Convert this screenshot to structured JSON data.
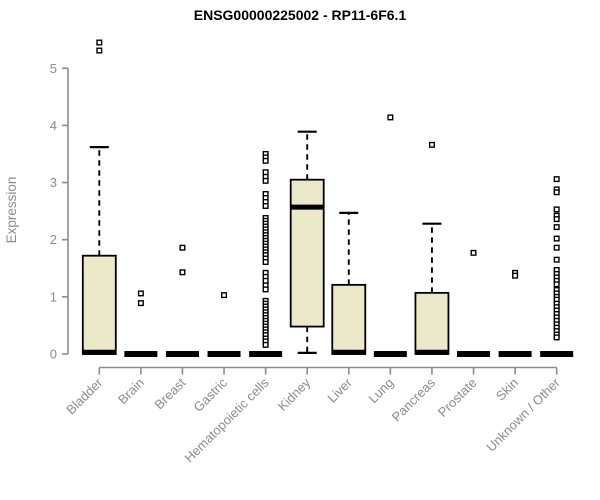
{
  "chart_data": {
    "type": "boxplot",
    "title": "ENSG00000225002 - RP11-6F6.1",
    "ylabel": "Expression",
    "xlabel": "",
    "ylim": [
      0,
      5
    ],
    "yticks": [
      0,
      1,
      2,
      3,
      4,
      5
    ],
    "grid": false,
    "legend": false,
    "categories": [
      "Bladder",
      "Brain",
      "Breast",
      "Gastric",
      "Hematopoietic cells",
      "Kidney",
      "Liver",
      "Lung",
      "Pancreas",
      "Prostate",
      "Skin",
      "Unknown / Other"
    ],
    "boxes": [
      {
        "category": "Bladder",
        "q1": 0,
        "median": 0.03,
        "q3": 1.72,
        "whisker_low": 0,
        "whisker_high": 3.62,
        "outliers": [
          5.45,
          5.31
        ]
      },
      {
        "category": "Brain",
        "q1": 0,
        "median": 0,
        "q3": 0,
        "whisker_low": 0,
        "whisker_high": 0,
        "outliers": [
          1.06,
          0.89
        ]
      },
      {
        "category": "Breast",
        "q1": 0,
        "median": 0,
        "q3": 0,
        "whisker_low": 0,
        "whisker_high": 0,
        "outliers": [
          1.86,
          1.43
        ]
      },
      {
        "category": "Gastric",
        "q1": 0,
        "median": 0,
        "q3": 0,
        "whisker_low": 0,
        "whisker_high": 0,
        "outliers": [
          1.03
        ]
      },
      {
        "category": "Hematopoietic cells",
        "q1": 0,
        "median": 0,
        "q3": 0,
        "whisker_low": 0,
        "whisker_high": 0,
        "outliers": [
          3.5,
          3.44,
          3.38,
          3.18,
          3.1,
          3.03,
          2.8,
          2.73,
          2.66,
          2.59,
          2.38,
          2.33,
          2.28,
          2.23,
          2.18,
          2.13,
          2.08,
          2.03,
          1.98,
          1.93,
          1.88,
          1.83,
          1.78,
          1.73,
          1.67,
          1.61,
          1.42,
          1.35,
          1.28,
          1.2,
          1.13,
          0.93,
          0.88,
          0.83,
          0.78,
          0.73,
          0.68,
          0.63,
          0.58,
          0.53,
          0.48,
          0.43,
          0.38,
          0.33,
          0.27,
          0.22,
          0.16
        ]
      },
      {
        "category": "Kidney",
        "q1": 0.48,
        "median": 2.57,
        "q3": 3.05,
        "whisker_low": 0.02,
        "whisker_high": 3.89,
        "outliers": []
      },
      {
        "category": "Liver",
        "q1": 0,
        "median": 0.03,
        "q3": 1.21,
        "whisker_low": 0,
        "whisker_high": 2.47,
        "outliers": []
      },
      {
        "category": "Lung",
        "q1": 0,
        "median": 0,
        "q3": 0,
        "whisker_low": 0,
        "whisker_high": 0,
        "outliers": [
          4.14
        ]
      },
      {
        "category": "Pancreas",
        "q1": 0,
        "median": 0.03,
        "q3": 1.07,
        "whisker_low": 0,
        "whisker_high": 2.28,
        "outliers": [
          3.66
        ]
      },
      {
        "category": "Prostate",
        "q1": 0,
        "median": 0,
        "q3": 0,
        "whisker_low": 0,
        "whisker_high": 0,
        "outliers": [
          1.77
        ]
      },
      {
        "category": "Skin",
        "q1": 0,
        "median": 0,
        "q3": 0,
        "whisker_low": 0,
        "whisker_high": 0,
        "outliers": [
          1.42,
          1.37
        ]
      },
      {
        "category": "Unknown / Other",
        "q1": 0,
        "median": 0,
        "q3": 0,
        "whisker_low": 0,
        "whisker_high": 0,
        "outliers": [
          3.06,
          2.88,
          2.83,
          2.53,
          2.42,
          2.36,
          2.22,
          2.02,
          1.86,
          1.65,
          1.47,
          1.4,
          1.34,
          1.28,
          1.22,
          1.12,
          1.06,
          1.0,
          0.95,
          0.88,
          0.82,
          0.76,
          0.7,
          0.64,
          0.58,
          0.52,
          0.46,
          0.4,
          0.34,
          0.29
        ]
      }
    ],
    "colors": {
      "box_fill": "#ECE8CA",
      "box_stroke": "#000000",
      "median": "#000000",
      "whisker": "#000000",
      "outlier_fill": "#FFFFFF",
      "outlier_stroke": "#000000",
      "axis": "#8C8C8C",
      "tick_label": "#8C8C8C",
      "title": "#000000",
      "background": "#FFFFFF"
    }
  }
}
